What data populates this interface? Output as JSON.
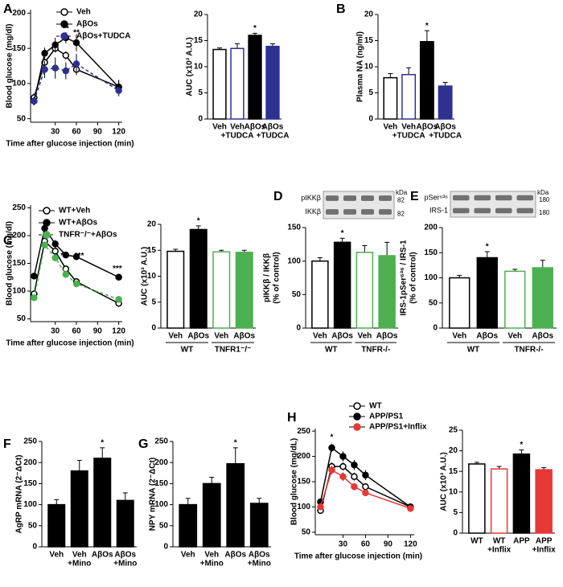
{
  "chart_data": [
    {
      "type": "line",
      "panel": "A",
      "xlabel": "Time after glucose injection (min)",
      "ylabel": "Blood glucose (mg/dl)",
      "x": [
        0,
        15,
        30,
        45,
        60,
        120
      ],
      "xlim": [
        -5,
        125
      ],
      "xticks": [
        30,
        60,
        90,
        120
      ],
      "ylim": [
        45,
        205
      ],
      "yticks": [
        50,
        100,
        150,
        200
      ],
      "series": [
        {
          "name": "Veh",
          "color": "#000000",
          "marker": "open",
          "dashed": false,
          "values": [
            80,
            130,
            150,
            140,
            120,
            95
          ],
          "errors": [
            6,
            8,
            6,
            6,
            8,
            10
          ]
        },
        {
          "name": "AβOs",
          "color": "#000000",
          "marker": "filled",
          "dashed": false,
          "values": [
            75,
            143,
            155,
            165,
            158,
            95
          ],
          "errors": [
            6,
            8,
            10,
            8,
            12,
            10
          ]
        },
        {
          "name": "AβOs+TUDCA",
          "color": "#2e3192",
          "marker": "filled",
          "dashed": true,
          "values": [
            75,
            120,
            122,
            118,
            128,
            90
          ],
          "errors": [
            6,
            12,
            15,
            12,
            14,
            8
          ]
        }
      ],
      "annotations": [
        {
          "text": "**",
          "x": 45,
          "y": 178
        },
        {
          "text": "**",
          "x": 60,
          "y": 172
        }
      ]
    },
    {
      "type": "bar",
      "ylabel": "AUC (x10³ A.U.)",
      "categories": [
        [
          "Veh"
        ],
        [
          "Veh",
          "+TUDCA"
        ],
        [
          "AβOs"
        ],
        [
          "AβOs",
          "+TUDCA"
        ]
      ],
      "values": [
        13.3,
        13.5,
        16,
        13.9
      ],
      "errors": [
        0.3,
        0.9,
        0.4,
        0.5
      ],
      "colors": [
        "#000000",
        "#2e3192",
        "#000000",
        "#2e3192"
      ],
      "filled": [
        false,
        false,
        true,
        true
      ],
      "ylim": [
        0,
        20
      ],
      "yticks": [
        0,
        5,
        10,
        15,
        20
      ],
      "annotations": [
        {
          "text": "*",
          "index": 2
        }
      ]
    },
    {
      "type": "bar",
      "panel": "B",
      "ylabel": "Plasma NA (ng/ml)",
      "categories": [
        [
          "Veh"
        ],
        [
          "Veh",
          "+TUDCA"
        ],
        [
          "AβOs"
        ],
        [
          "AβOs",
          "+TUDCA"
        ]
      ],
      "values": [
        7.9,
        8.5,
        14.8,
        6.3
      ],
      "errors": [
        0.8,
        1.3,
        2.1,
        0.7
      ],
      "colors": [
        "#000000",
        "#2e3192",
        "#000000",
        "#2e3192"
      ],
      "filled": [
        false,
        false,
        true,
        true
      ],
      "ylim": [
        0,
        20
      ],
      "yticks": [
        0,
        5,
        10,
        15,
        20
      ],
      "annotations": [
        {
          "text": "*",
          "index": 2
        }
      ]
    },
    {
      "type": "line",
      "panel": "C",
      "xlabel": "Time after glucose injection (min)",
      "ylabel": "Blood glucose (mg/dl)",
      "x": [
        0,
        15,
        30,
        45,
        60,
        120
      ],
      "xlim": [
        -5,
        125
      ],
      "xticks": [
        30,
        60,
        90,
        120
      ],
      "ylim": [
        45,
        255
      ],
      "yticks": [
        50,
        100,
        150,
        200,
        250
      ],
      "series": [
        {
          "name": "WT+Veh",
          "color": "#000000",
          "marker": "open",
          "dashed": false,
          "values": [
            95,
            190,
            172,
            140,
            117,
            78
          ],
          "errors": [
            5,
            6,
            6,
            5,
            5,
            4
          ]
        },
        {
          "name": "WT+AβOs",
          "color": "#000000",
          "marker": "filled",
          "dashed": false,
          "values": [
            127,
            213,
            185,
            165,
            162,
            125
          ],
          "errors": [
            5,
            8,
            7,
            6,
            6,
            5
          ]
        },
        {
          "name": "TNFR⁻/⁻+AβOs",
          "color": "#4cb050",
          "marker": "filled",
          "dashed": true,
          "values": [
            88,
            183,
            160,
            130,
            113,
            85
          ],
          "errors": [
            5,
            6,
            6,
            5,
            5,
            4
          ]
        }
      ],
      "annotations": [
        {
          "text": "**",
          "x": 42,
          "y": 163
        },
        {
          "text": "***",
          "x": 64,
          "y": 163
        },
        {
          "text": "***",
          "x": 118,
          "y": 140
        }
      ]
    },
    {
      "type": "bar",
      "ylabel": "AUC (x10³ A.U.)",
      "categories": [
        [
          "Veh"
        ],
        [
          "AβOs"
        ],
        [
          "Veh"
        ],
        [
          "AβOs"
        ]
      ],
      "values": [
        14.8,
        19,
        14.7,
        14.6
      ],
      "errors": [
        0.4,
        0.7,
        0.3,
        0.4
      ],
      "colors": [
        "#000000",
        "#000000",
        "#4cb050",
        "#4cb050"
      ],
      "filled": [
        false,
        true,
        false,
        true
      ],
      "ylim": [
        0,
        20
      ],
      "yticks": [
        0,
        5,
        10,
        15,
        20
      ],
      "annotations": [
        {
          "text": "*",
          "index": 1
        }
      ],
      "groups": [
        {
          "label": "WT",
          "span": [
            0,
            1
          ]
        },
        {
          "label": "TNFR1⁻/⁻",
          "span": [
            2,
            3
          ]
        }
      ]
    },
    {
      "type": "bar",
      "panel": "D",
      "ylabel": [
        "pIKKβ / IKKβ",
        "(% of control)"
      ],
      "categories": [
        [
          "Veh"
        ],
        [
          "AβOs"
        ],
        [
          "Veh"
        ],
        [
          "AβOs"
        ]
      ],
      "values": [
        100,
        128,
        113,
        108
      ],
      "errors": [
        5,
        6,
        10,
        20
      ],
      "colors": [
        "#000000",
        "#000000",
        "#4cb050",
        "#4cb050"
      ],
      "filled": [
        false,
        true,
        false,
        true
      ],
      "ylim": [
        0,
        150
      ],
      "yticks": [
        0,
        50,
        100,
        150
      ],
      "annotations": [
        {
          "text": "*",
          "index": 1
        }
      ],
      "groups": [
        {
          "label": "WT",
          "span": [
            0,
            1
          ]
        },
        {
          "label": "TNFR-/-",
          "span": [
            2,
            3
          ]
        }
      ],
      "blot": {
        "labels": [
          "pIKKβ",
          "IKKβ"
        ],
        "unit": "kDa",
        "markers": [
          82,
          82
        ]
      }
    },
    {
      "type": "bar",
      "panel": "E",
      "ylabel": [
        "IRS-1pSer⁶³⁶ / IRS-1",
        "(% of control)"
      ],
      "categories": [
        [
          "Veh"
        ],
        [
          "AβOs"
        ],
        [
          "Veh"
        ],
        [
          "AβOs"
        ]
      ],
      "values": [
        100,
        140,
        113,
        120
      ],
      "errors": [
        5,
        12,
        4,
        15
      ],
      "colors": [
        "#000000",
        "#000000",
        "#4cb050",
        "#4cb050"
      ],
      "filled": [
        false,
        true,
        false,
        true
      ],
      "ylim": [
        0,
        200
      ],
      "yticks": [
        0,
        50,
        100,
        150,
        200
      ],
      "annotations": [
        {
          "text": "*",
          "index": 1
        }
      ],
      "groups": [
        {
          "label": "WT",
          "span": [
            0,
            1
          ]
        },
        {
          "label": "TNFR-/-",
          "span": [
            2,
            3
          ]
        }
      ],
      "blot": {
        "labels": [
          "pSer⁶³⁶",
          "IRS-1"
        ],
        "unit": "kDa",
        "markers": [
          180,
          180
        ]
      }
    },
    {
      "type": "bar",
      "panel": "F",
      "ylabel": "AgRP mRNA (2⁻ΔCt)",
      "categories": [
        [
          "Veh"
        ],
        [
          "Veh",
          "+Mino"
        ],
        [
          "AβOs"
        ],
        [
          "AβOs",
          "+Mino"
        ]
      ],
      "values": [
        100,
        180,
        210,
        110
      ],
      "errors": [
        12,
        25,
        25,
        18
      ],
      "colors": [
        "#000000",
        "#000000",
        "#000000",
        "#000000"
      ],
      "filled": [
        true,
        true,
        true,
        true
      ],
      "ylim": [
        0,
        250
      ],
      "yticks": [
        0,
        50,
        100,
        150,
        200,
        250
      ],
      "annotations": [
        {
          "text": "*",
          "index": 2
        }
      ]
    },
    {
      "type": "bar",
      "panel": "G",
      "ylabel": "NPY mRNA (2⁻ΔCt)",
      "categories": [
        [
          "Veh"
        ],
        [
          "Veh",
          "+Mino"
        ],
        [
          "AβOs"
        ],
        [
          "AβOs",
          "+Mino"
        ]
      ],
      "values": [
        100,
        150,
        197,
        103
      ],
      "errors": [
        15,
        15,
        38,
        12
      ],
      "colors": [
        "#000000",
        "#000000",
        "#000000",
        "#000000"
      ],
      "filled": [
        true,
        true,
        true,
        true
      ],
      "ylim": [
        0,
        250
      ],
      "yticks": [
        0,
        50,
        100,
        150,
        200,
        250
      ],
      "annotations": [
        {
          "text": "*",
          "index": 2
        }
      ]
    },
    {
      "type": "line",
      "panel": "H",
      "xlabel": "Time after glucose injection (min)",
      "ylabel": "Blood glucose (mg/dL)",
      "x": [
        0,
        15,
        30,
        45,
        60,
        120
      ],
      "xlim": [
        -7,
        125
      ],
      "xticks": [
        30,
        60,
        90,
        120
      ],
      "ylim": [
        45,
        255
      ],
      "yticks": [
        50,
        100,
        150,
        200,
        250
      ],
      "series": [
        {
          "name": "WT",
          "color": "#000000",
          "marker": "open",
          "dashed": false,
          "values": [
            93,
            180,
            180,
            160,
            140,
            100
          ],
          "errors": [
            5,
            8,
            8,
            8,
            7,
            5
          ]
        },
        {
          "name": "APP/PS1",
          "color": "#000000",
          "marker": "filled",
          "dashed": false,
          "values": [
            110,
            217,
            200,
            183,
            163,
            100
          ],
          "errors": [
            5,
            8,
            10,
            10,
            10,
            5
          ]
        },
        {
          "name": "APP/PS1+Inflix",
          "color": "#e53935",
          "marker": "filled",
          "dashed": false,
          "values": [
            100,
            173,
            160,
            140,
            128,
            97
          ],
          "errors": [
            5,
            8,
            8,
            7,
            6,
            4
          ]
        }
      ],
      "annotations": [
        {
          "text": "*",
          "x": 15,
          "y": 238
        }
      ]
    },
    {
      "type": "bar",
      "ylabel": "AUC (x10³ A.U.)",
      "categories": [
        [
          "WT"
        ],
        [
          "WT",
          "+Inflix"
        ],
        [
          "APP"
        ],
        [
          "APP",
          "+Inflix"
        ]
      ],
      "values": [
        16.8,
        15.6,
        19.2,
        15.4
      ],
      "errors": [
        0.4,
        0.6,
        1,
        0.5
      ],
      "colors": [
        "#000000",
        "#e53935",
        "#000000",
        "#e53935"
      ],
      "filled": [
        false,
        false,
        true,
        true
      ],
      "ylim": [
        0,
        25
      ],
      "yticks": [
        0,
        5,
        10,
        15,
        20,
        25
      ],
      "annotations": [
        {
          "text": "*",
          "index": 2
        }
      ]
    }
  ]
}
